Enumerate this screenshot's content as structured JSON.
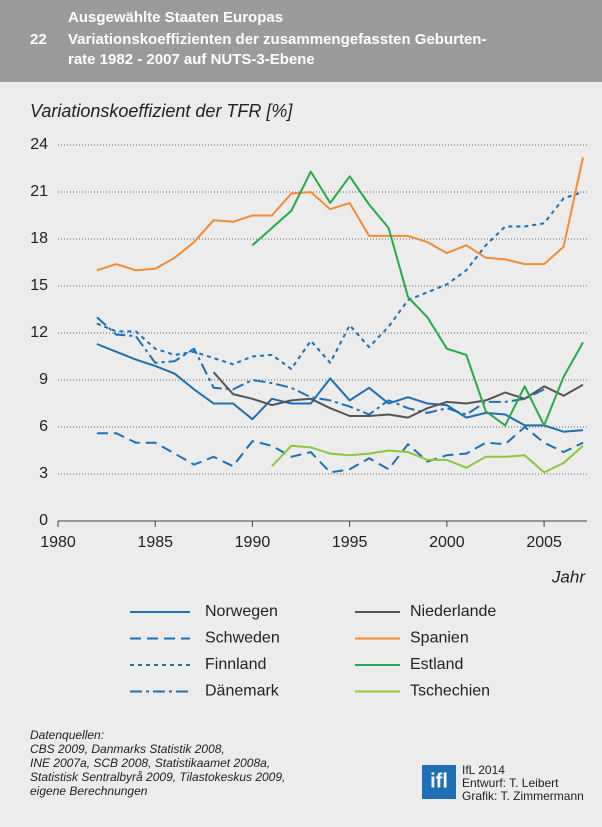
{
  "header": {
    "number": "22",
    "lines": [
      "Ausgewählte Staaten Europas",
      "Variationskoeffizienten der zusammengefassten Geburten-",
      "rate 1982 - 2007 auf NUTS-3-Ebene"
    ]
  },
  "chart_data": {
    "type": "line",
    "ylabel": "Variationskoeffizient der TFR [%]",
    "xlabel": "Jahr",
    "x": [
      1982,
      1983,
      1984,
      1985,
      1986,
      1987,
      1988,
      1989,
      1990,
      1991,
      1992,
      1993,
      1994,
      1995,
      1996,
      1997,
      1998,
      1999,
      2000,
      2001,
      2002,
      2003,
      2004,
      2005,
      2006,
      2007
    ],
    "xlim": [
      1980,
      2007
    ],
    "xticks": [
      1980,
      1985,
      1990,
      1995,
      2000,
      2005
    ],
    "ylim": [
      0,
      24
    ],
    "yticks": [
      0,
      3,
      6,
      9,
      12,
      15,
      18,
      21,
      24
    ],
    "grid": true,
    "series": [
      {
        "name": "Norwegen",
        "color": "#1f6fb5",
        "linestyle": "solid",
        "values": [
          11.3,
          10.8,
          10.3,
          9.9,
          9.4,
          8.4,
          7.5,
          7.5,
          6.5,
          7.8,
          7.5,
          7.5,
          9.1,
          7.7,
          8.5,
          7.5,
          7.9,
          7.5,
          7.4,
          6.6,
          6.9,
          6.8,
          6.1,
          6.1,
          5.7,
          5.8
        ]
      },
      {
        "name": "Schweden",
        "color": "#1f6fb5",
        "linestyle": "dashed",
        "values": [
          5.6,
          5.6,
          5.0,
          5.0,
          4.3,
          3.6,
          4.1,
          3.5,
          5.1,
          4.8,
          4.1,
          4.4,
          3.1,
          3.3,
          4.0,
          3.3,
          4.9,
          3.8,
          4.2,
          4.3,
          5.0,
          4.9,
          6.0,
          5.0,
          4.4,
          5.0
        ]
      },
      {
        "name": "Finnland",
        "color": "#1f6fb5",
        "linestyle": "dotted",
        "values": [
          12.6,
          12.1,
          12.1,
          11.0,
          10.6,
          10.8,
          10.4,
          10.0,
          10.5,
          10.6,
          9.7,
          11.5,
          10.1,
          12.5,
          11.1,
          12.4,
          14.1,
          14.6,
          15.1,
          16.0,
          17.6,
          18.8,
          18.8,
          19.0,
          20.6,
          21.0
        ]
      },
      {
        "name": "Dänemark",
        "color": "#1f6fb5",
        "linestyle": "dashdot",
        "values": [
          13.0,
          11.9,
          11.8,
          10.1,
          10.2,
          11.0,
          8.5,
          8.4,
          9.0,
          8.8,
          8.5,
          7.9,
          7.7,
          7.3,
          6.8,
          7.7,
          7.2,
          6.9,
          7.2,
          6.8,
          7.6,
          7.6,
          7.8,
          8.4,
          null,
          null
        ]
      },
      {
        "name": "Niederlande",
        "color": "#555555",
        "linestyle": "solid",
        "values": [
          null,
          null,
          null,
          null,
          null,
          null,
          9.5,
          8.1,
          7.8,
          7.4,
          7.7,
          7.8,
          7.2,
          6.7,
          6.7,
          6.8,
          6.6,
          7.2,
          7.6,
          7.5,
          7.7,
          8.2,
          7.8,
          8.6,
          8.0,
          8.7
        ]
      },
      {
        "name": "Spanien",
        "color": "#f28c35",
        "linestyle": "solid",
        "values": [
          16.0,
          16.4,
          16.0,
          16.1,
          16.8,
          17.8,
          19.2,
          19.1,
          19.5,
          19.5,
          20.9,
          21.0,
          19.9,
          20.3,
          18.2,
          18.2,
          18.2,
          17.8,
          17.1,
          17.6,
          16.8,
          16.7,
          16.4,
          16.4,
          17.5,
          23.2
        ]
      },
      {
        "name": "Estland",
        "color": "#2aa84a",
        "linestyle": "solid",
        "values": [
          null,
          null,
          null,
          null,
          null,
          null,
          null,
          null,
          17.6,
          18.7,
          19.8,
          22.3,
          20.3,
          22.0,
          20.2,
          18.7,
          14.3,
          13.0,
          11.0,
          10.6,
          7.0,
          6.1,
          8.6,
          6.1,
          9.2,
          11.4
        ]
      },
      {
        "name": "Tschechien",
        "color": "#8dc63f",
        "linestyle": "solid",
        "values": [
          null,
          null,
          null,
          null,
          null,
          null,
          null,
          null,
          null,
          3.5,
          4.8,
          4.7,
          4.3,
          4.2,
          4.3,
          4.5,
          4.4,
          3.9,
          3.9,
          3.4,
          4.1,
          4.1,
          4.2,
          3.1,
          3.7,
          4.8
        ]
      }
    ]
  },
  "sources": {
    "heading": "Datenquellen:",
    "lines": [
      "CBS 2009, Danmarks Statistik 2008,",
      "INE 2007a, SCB 2008, Statistikaamet 2008a,",
      "Statistisk Sentralbyrå 2009, Tilastokeskus 2009,",
      "eigene Berechnungen"
    ]
  },
  "credits": {
    "logo": "ifl",
    "lines": [
      "IfL 2014",
      "Entwurf: T. Leibert",
      "Grafik: T. Zimmermann"
    ]
  }
}
